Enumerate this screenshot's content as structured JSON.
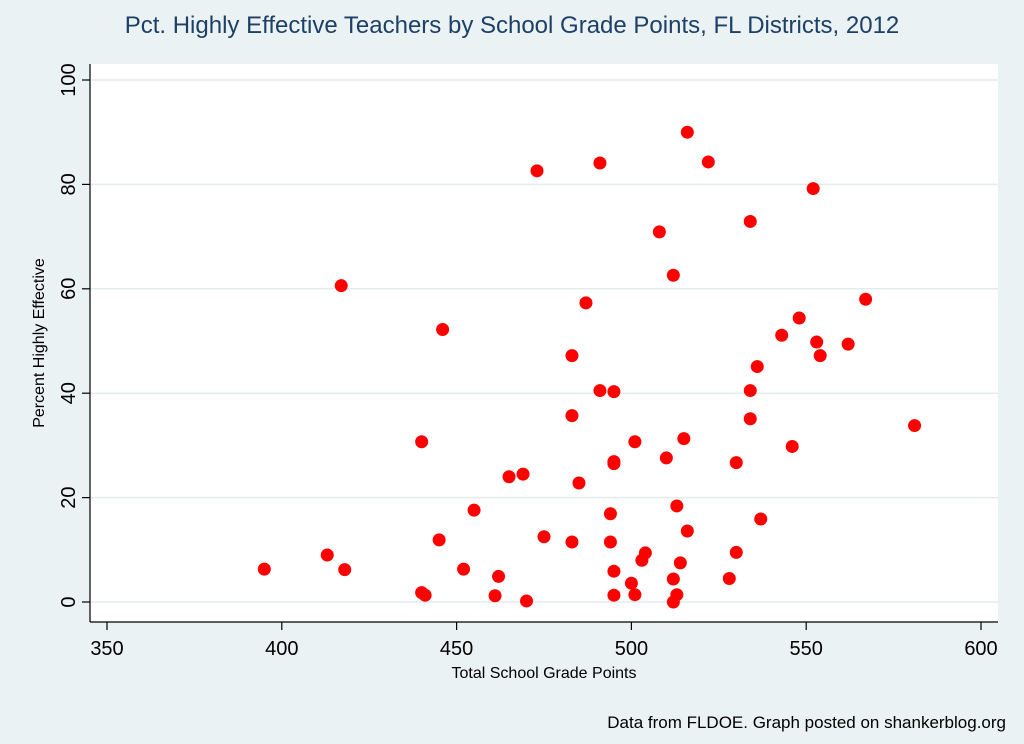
{
  "title": "Pct. Highly Effective Teachers by School Grade Points, FL Districts, 2012",
  "footer": "Data from FLDOE. Graph posted on shankerblog.org",
  "colors": {
    "background": "#eaf2f3",
    "plot_area": "#ffffff",
    "marker": "#ff0000",
    "grid": "#e3eced",
    "title": "#1e3f66"
  },
  "chart_data": {
    "type": "scatter",
    "title": "Pct. Highly Effective Teachers by School Grade Points, FL Districts, 2012",
    "xlabel": "Total School Grade Points",
    "ylabel": "Percent Highly Effective",
    "xlim": [
      350,
      600
    ],
    "ylim": [
      0,
      100
    ],
    "xticks": [
      350,
      400,
      450,
      500,
      550,
      600
    ],
    "yticks": [
      0,
      20,
      40,
      60,
      80,
      100
    ],
    "grid": true,
    "points": [
      [
        395,
        6.3
      ],
      [
        413,
        9.0
      ],
      [
        417,
        60.6
      ],
      [
        418,
        6.2
      ],
      [
        440,
        30.7
      ],
      [
        440,
        1.8
      ],
      [
        441,
        1.3
      ],
      [
        445,
        11.9
      ],
      [
        446,
        52.2
      ],
      [
        452,
        6.3
      ],
      [
        455,
        17.6
      ],
      [
        461,
        1.2
      ],
      [
        462,
        4.9
      ],
      [
        465,
        24.0
      ],
      [
        469,
        24.5
      ],
      [
        470,
        0.2
      ],
      [
        473,
        82.6
      ],
      [
        475,
        12.5
      ],
      [
        483,
        47.2
      ],
      [
        483,
        35.7
      ],
      [
        483,
        11.5
      ],
      [
        485,
        22.8
      ],
      [
        487,
        57.3
      ],
      [
        491,
        84.1
      ],
      [
        491,
        40.5
      ],
      [
        494,
        16.9
      ],
      [
        494,
        11.5
      ],
      [
        495,
        40.3
      ],
      [
        495,
        26.9
      ],
      [
        495,
        26.5
      ],
      [
        495,
        5.9
      ],
      [
        495,
        1.3
      ],
      [
        500,
        3.6
      ],
      [
        501,
        30.7
      ],
      [
        501,
        1.4
      ],
      [
        503,
        8.0
      ],
      [
        504,
        9.4
      ],
      [
        508,
        70.9
      ],
      [
        510,
        27.6
      ],
      [
        512,
        62.6
      ],
      [
        512,
        4.4
      ],
      [
        512,
        0.0
      ],
      [
        513,
        18.4
      ],
      [
        513,
        1.4
      ],
      [
        514,
        7.5
      ],
      [
        515,
        31.3
      ],
      [
        516,
        90.0
      ],
      [
        516,
        13.6
      ],
      [
        522,
        84.3
      ],
      [
        528,
        4.5
      ],
      [
        530,
        26.7
      ],
      [
        530,
        9.5
      ],
      [
        534,
        72.9
      ],
      [
        534,
        40.5
      ],
      [
        534,
        35.1
      ],
      [
        536,
        45.1
      ],
      [
        537,
        15.9
      ],
      [
        543,
        51.1
      ],
      [
        546,
        29.8
      ],
      [
        548,
        54.4
      ],
      [
        552,
        79.2
      ],
      [
        553,
        49.8
      ],
      [
        554,
        47.2
      ],
      [
        562,
        49.4
      ],
      [
        567,
        58.0
      ],
      [
        581,
        33.8
      ]
    ]
  }
}
